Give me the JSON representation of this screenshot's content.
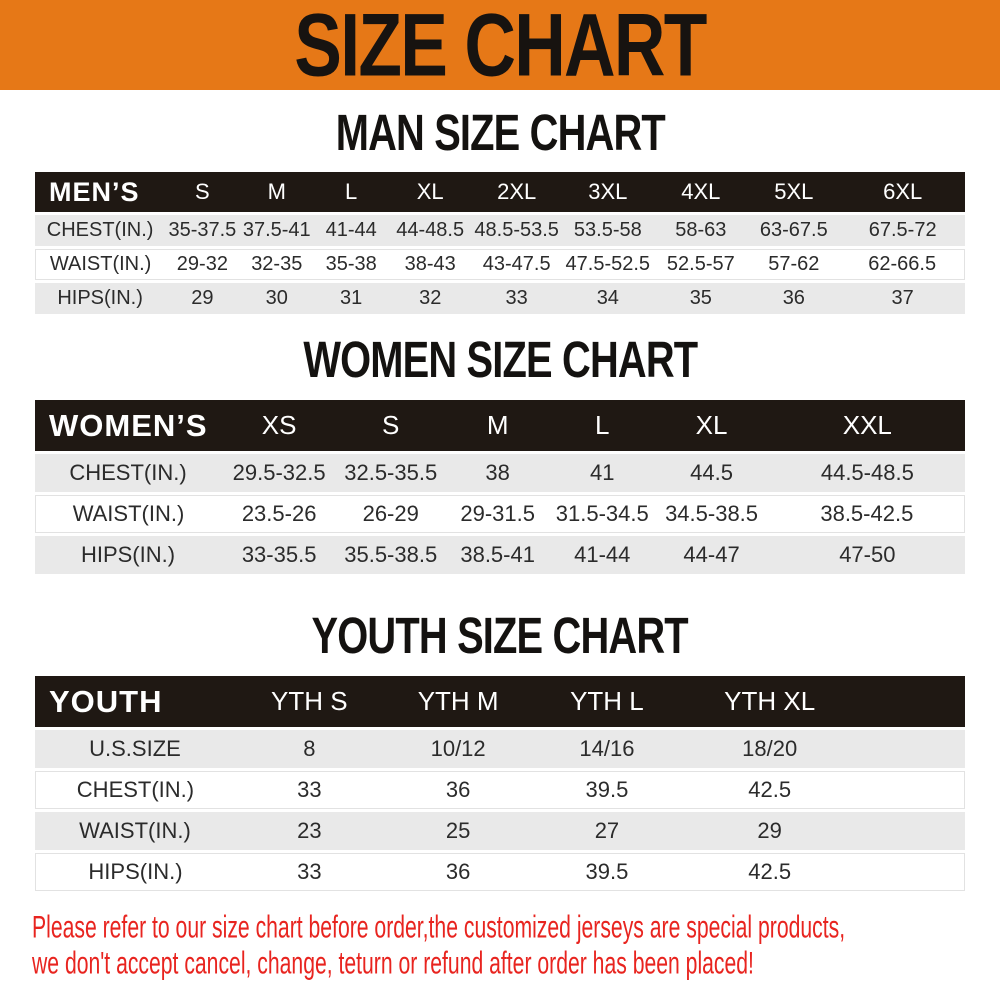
{
  "banner": {
    "title": "SIZE CHART"
  },
  "colors": {
    "banner_orange": "#E67817",
    "header_black": "#1F1813",
    "row_gray": "#E9E9E9",
    "notice_red": "#E8241F",
    "text_dark": "#2B2B2B"
  },
  "sections": [
    {
      "heading": "MAN SIZE CHART",
      "table": {
        "header": [
          "MEN’S",
          "S",
          "M",
          "L",
          "XL",
          "2XL",
          "3XL",
          "4XL",
          "5XL",
          "6XL"
        ],
        "rows": [
          [
            "CHEST(IN.)",
            "35-37.5",
            "37.5-41",
            "41-44",
            "44-48.5",
            "48.5-53.5",
            "53.5-58",
            "58-63",
            "63-67.5",
            "67.5-72"
          ],
          [
            "WAIST(IN.)",
            "29-32",
            "32-35",
            "35-38",
            "38-43",
            "43-47.5",
            "47.5-52.5",
            "52.5-57",
            "57-62",
            "62-66.5"
          ],
          [
            "HIPS(IN.)",
            "29",
            "30",
            "31",
            "32",
            "33",
            "34",
            "35",
            "36",
            "37"
          ]
        ]
      }
    },
    {
      "heading": "WOMEN SIZE CHART",
      "table": {
        "header": [
          "WOMEN’S",
          "XS",
          "S",
          "M",
          "L",
          "XL",
          "XXL"
        ],
        "rows": [
          [
            "CHEST(IN.)",
            "29.5-32.5",
            "32.5-35.5",
            "38",
            "41",
            "44.5",
            "44.5-48.5"
          ],
          [
            "WAIST(IN.)",
            "23.5-26",
            "26-29",
            "29-31.5",
            "31.5-34.5",
            "34.5-38.5",
            "38.5-42.5"
          ],
          [
            "HIPS(IN.)",
            "33-35.5",
            "35.5-38.5",
            "38.5-41",
            "41-44",
            "44-47",
            "47-50"
          ]
        ]
      }
    },
    {
      "heading": "YOUTH SIZE CHART",
      "table": {
        "header": [
          "YOUTH",
          "YTH S",
          "YTH M",
          "YTH L",
          "YTH XL",
          ""
        ],
        "rows": [
          [
            "U.S.SIZE",
            "8",
            "10/12",
            "14/16",
            "18/20",
            ""
          ],
          [
            "CHEST(IN.)",
            "33",
            "36",
            "39.5",
            "42.5",
            ""
          ],
          [
            "WAIST(IN.)",
            "23",
            "25",
            "27",
            "29",
            ""
          ],
          [
            "HIPS(IN.)",
            "33",
            "36",
            "39.5",
            "42.5",
            ""
          ]
        ]
      }
    }
  ],
  "footer": {
    "line1": "Please refer to our size chart before order,the customized jerseys are special products,",
    "line2": "we don't accept cancel, change, teturn or refund after order has been placed!"
  }
}
